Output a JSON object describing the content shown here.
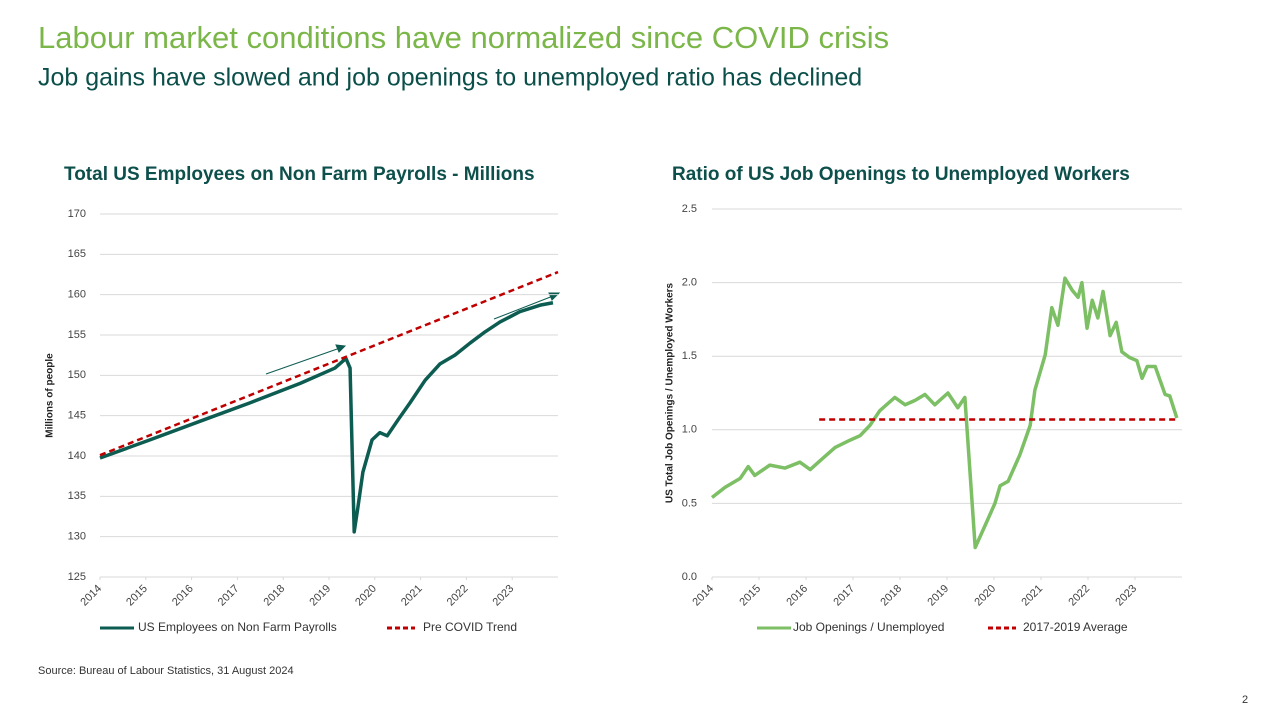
{
  "slide": {
    "title": "Labour market conditions have normalized since COVID crisis",
    "subtitle": "Job gains have slowed and job openings to unemployed ratio has declined"
  },
  "footer": {
    "source": "Source: Bureau of Labour Statistics, 31 August 2024",
    "page": "2"
  },
  "chart_data": [
    {
      "type": "line",
      "title": "Total US Employees on Non Farm Payrolls - Millions",
      "y_label": "Millions of people",
      "xlim": [
        2014,
        2024
      ],
      "xticks": [
        2014,
        2015,
        2016,
        2017,
        2018,
        2019,
        2020,
        2021,
        2022,
        2023
      ],
      "ylim": [
        125,
        170
      ],
      "yticks": [
        125,
        130,
        135,
        140,
        145,
        150,
        155,
        160,
        165,
        170
      ],
      "grid": true,
      "series": [
        {
          "name": "US Employees on Non Farm Payrolls",
          "color": "#0d5c52",
          "dash": false,
          "x": [
            2014,
            2015.09,
            2016.18,
            2017.28,
            2018.37,
            2019.13,
            2019.37,
            2019.46,
            2019.55,
            2019.63,
            2019.74,
            2019.94,
            2020.11,
            2020.27,
            2020.51,
            2020.77,
            2021.1,
            2021.42,
            2021.75,
            2022.08,
            2022.41,
            2022.73,
            2023.17,
            2023.61,
            2023.89
          ],
          "values": [
            139.75,
            142.0,
            144.3,
            146.6,
            149.0,
            150.9,
            152.1,
            150.9,
            130.6,
            133.6,
            138.0,
            142.0,
            142.9,
            142.5,
            144.5,
            146.6,
            149.4,
            151.4,
            152.5,
            154.0,
            155.4,
            156.6,
            157.9,
            158.7,
            159.0
          ]
        },
        {
          "name": "Pre COVID Trend",
          "color": "#c00000",
          "dash": true,
          "x": [
            2014,
            2024
          ],
          "values": [
            140.1,
            162.8
          ]
        }
      ]
    },
    {
      "type": "line",
      "title": "Ratio of US Job Openings to Unemployed Workers",
      "y_label": "US Total Job Openings / Unemployed Workers",
      "xlim": [
        2014,
        2024
      ],
      "xticks": [
        2014,
        2015,
        2016,
        2017,
        2018,
        2019,
        2020,
        2021,
        2022,
        2023
      ],
      "ylim": [
        0,
        2.5
      ],
      "yticks": [
        {
          "value": 0,
          "label": "0.0"
        },
        0.5,
        {
          "value": 1,
          "label": "1.0"
        },
        1.5,
        {
          "value": 2,
          "label": "2.0"
        },
        2.5
      ],
      "grid": true,
      "series": [
        {
          "name": "Job Openings / Unemployed",
          "color": "#7cbf64",
          "dash": false,
          "x": [
            2014,
            2014.28,
            2014.6,
            2014.77,
            2014.91,
            2015.23,
            2015.55,
            2015.87,
            2016.09,
            2016.3,
            2016.62,
            2016.94,
            2017.15,
            2017.36,
            2017.57,
            2017.89,
            2018.11,
            2018.32,
            2018.53,
            2018.74,
            2019.02,
            2019.23,
            2019.38,
            2019.6,
            2019.81,
            2020.02,
            2020.13,
            2020.3,
            2020.55,
            2020.77,
            2020.87,
            2021.09,
            2021.23,
            2021.36,
            2021.51,
            2021.66,
            2021.79,
            2021.87,
            2021.98,
            2022.09,
            2022.21,
            2022.32,
            2022.47,
            2022.6,
            2022.72,
            2022.89,
            2023.04,
            2023.15,
            2023.26,
            2023.43,
            2023.64,
            2023.74,
            2023.89
          ],
          "values": [
            0.54,
            0.61,
            0.67,
            0.75,
            0.69,
            0.76,
            0.74,
            0.78,
            0.73,
            0.79,
            0.88,
            0.93,
            0.96,
            1.03,
            1.13,
            1.22,
            1.17,
            1.2,
            1.24,
            1.17,
            1.25,
            1.15,
            1.22,
            0.2,
            0.35,
            0.5,
            0.62,
            0.65,
            0.83,
            1.03,
            1.27,
            1.51,
            1.83,
            1.71,
            2.03,
            1.95,
            1.9,
            2.0,
            1.69,
            1.88,
            1.76,
            1.94,
            1.64,
            1.73,
            1.53,
            1.49,
            1.47,
            1.35,
            1.43,
            1.43,
            1.24,
            1.23,
            1.08
          ]
        },
        {
          "name": "2017-2019 Average",
          "color": "#c00000",
          "dash": true,
          "x": [
            2016.28,
            2023.89
          ],
          "values": [
            1.07,
            1.07
          ]
        }
      ]
    }
  ]
}
